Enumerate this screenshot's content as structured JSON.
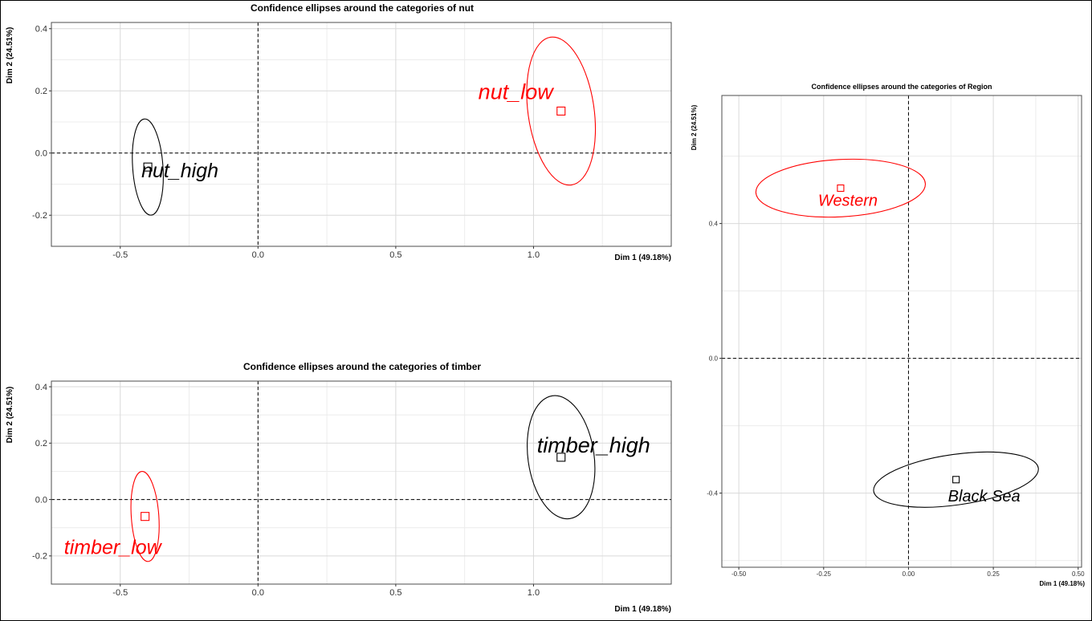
{
  "colors": {
    "black_series": "#000000",
    "red_series": "#ff0000",
    "grid": "#d9d9d9",
    "panel_border": "#4d4d4d"
  },
  "chart_data": [
    {
      "type": "scatter",
      "title": "Confidence ellipses around the categories of nut",
      "xlabel": "Dim 1 (49.18%)",
      "ylabel": "Dim 2 (24.51%)",
      "xlim": [
        -0.75,
        1.5
      ],
      "ylim": [
        -0.3,
        0.42
      ],
      "xticks": [
        -0.5,
        0.0,
        0.5,
        1.0
      ],
      "xtick_labels": [
        "-0.5",
        "0.0",
        "0.5",
        "1.0"
      ],
      "yticks": [
        -0.2,
        0.0,
        0.2,
        0.4
      ],
      "ytick_labels": [
        "-0.2",
        "0.0",
        "0.2",
        "0.4"
      ],
      "grid": true,
      "points": [
        {
          "label": "nut_high",
          "x": -0.4,
          "y": -0.045,
          "color": "#000000",
          "ellipse": {
            "rx": 0.055,
            "ry": 0.155,
            "angle": -4
          }
        },
        {
          "label": "nut_low",
          "x": 1.1,
          "y": 0.135,
          "color": "#ff0000",
          "ellipse": {
            "rx": 0.12,
            "ry": 0.24,
            "angle": -8
          }
        }
      ]
    },
    {
      "type": "scatter",
      "title": "Confidence ellipses around the categories of timber",
      "xlabel": "Dim 1 (49.18%)",
      "ylabel": "Dim 2 (24.51%)",
      "xlim": [
        -0.75,
        1.5
      ],
      "ylim": [
        -0.3,
        0.42
      ],
      "xticks": [
        -0.5,
        0.0,
        0.5,
        1.0
      ],
      "xtick_labels": [
        "-0.5",
        "0.0",
        "0.5",
        "1.0"
      ],
      "yticks": [
        -0.2,
        0.0,
        0.2,
        0.4
      ],
      "ytick_labels": [
        "-0.2",
        "0.0",
        "0.2",
        "0.4"
      ],
      "grid": true,
      "points": [
        {
          "label": "timber_high",
          "x": 1.1,
          "y": 0.15,
          "color": "#000000",
          "ellipse": {
            "rx": 0.12,
            "ry": 0.22,
            "angle": -8
          }
        },
        {
          "label": "timber_low",
          "x": -0.41,
          "y": -0.06,
          "color": "#ff0000",
          "ellipse": {
            "rx": 0.05,
            "ry": 0.16,
            "angle": -4
          }
        }
      ]
    },
    {
      "type": "scatter",
      "title": "Confidence ellipses around the categories of Region",
      "xlabel": "Dim 1 (49.18%)",
      "ylabel": "Dim 2 (24.51%)",
      "xlim": [
        -0.55,
        0.51
      ],
      "ylim": [
        -0.62,
        0.78
      ],
      "xticks": [
        -0.5,
        -0.25,
        0.0,
        0.25,
        0.5
      ],
      "xtick_labels": [
        "-0.50",
        "-0.25",
        "0.00",
        "0.25",
        "0.50"
      ],
      "yticks": [
        -0.4,
        0.0,
        0.4
      ],
      "ytick_labels": [
        "-0.4",
        "0.0",
        "0.4"
      ],
      "grid": true,
      "points": [
        {
          "label": "Western",
          "x": -0.2,
          "y": 0.505,
          "color": "#ff0000",
          "ellipse": {
            "rx": 0.25,
            "ry": 0.085,
            "angle": -3
          }
        },
        {
          "label": "Black Sea",
          "x": 0.14,
          "y": -0.36,
          "color": "#000000",
          "ellipse": {
            "rx": 0.245,
            "ry": 0.075,
            "angle": -8
          }
        }
      ]
    }
  ]
}
